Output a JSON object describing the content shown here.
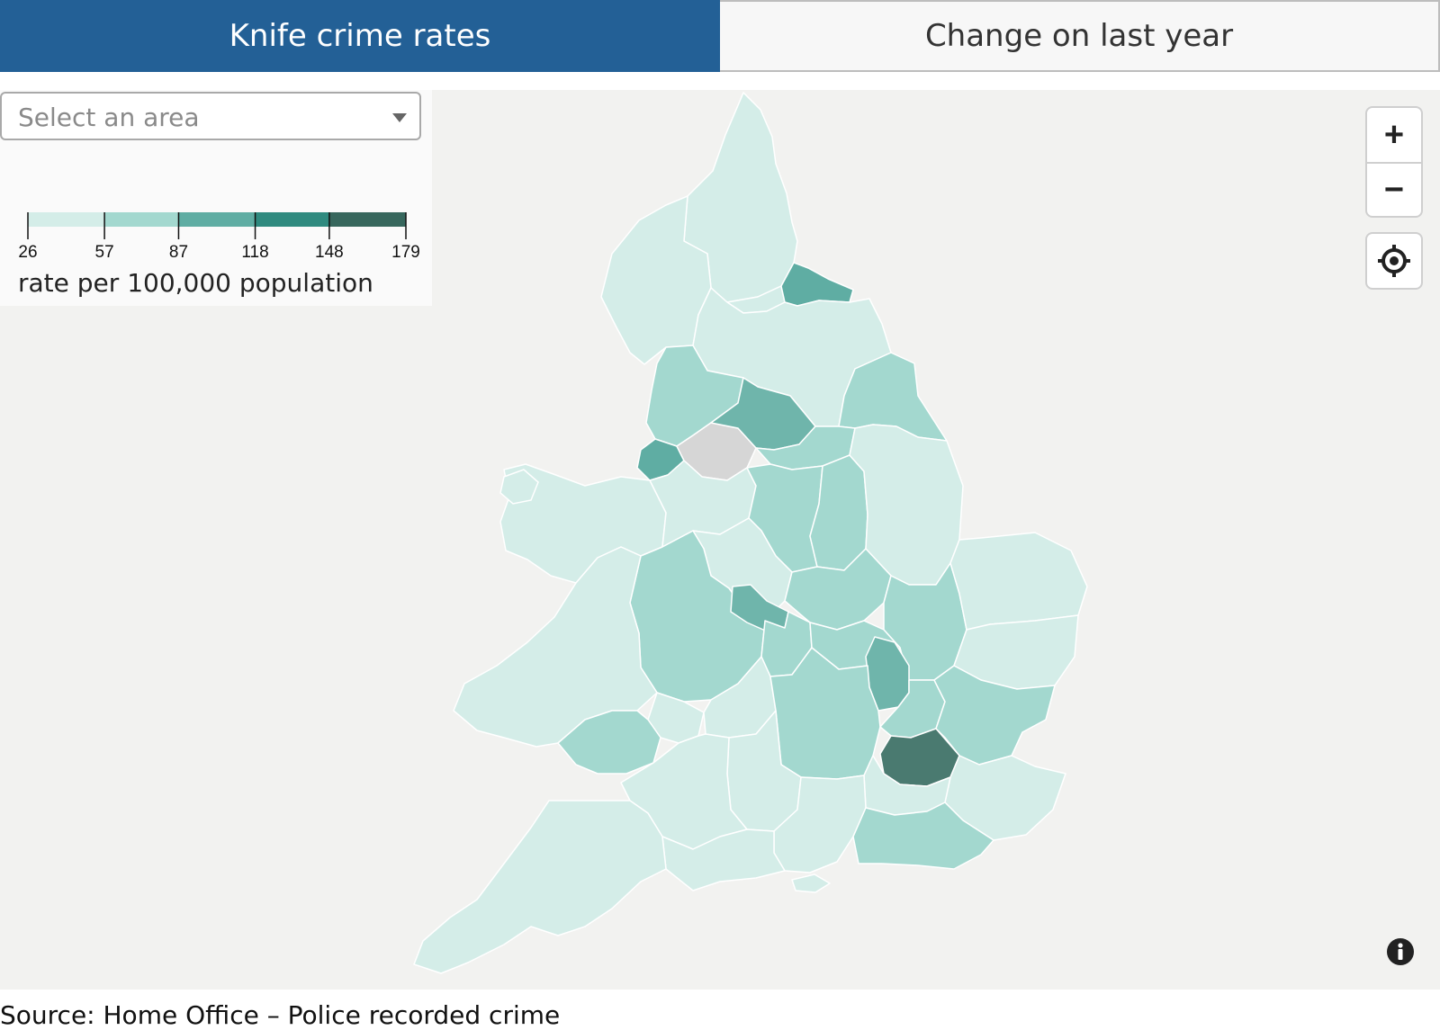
{
  "tabs": [
    {
      "label": "Knife crime rates",
      "active": true
    },
    {
      "label": "Change on last year",
      "active": false
    }
  ],
  "select": {
    "placeholder": "Select an area"
  },
  "legend": {
    "ticks": [
      "26",
      "57",
      "87",
      "118",
      "148",
      "179"
    ],
    "colors": [
      "#d4ede8",
      "#a3d8cf",
      "#5fada3",
      "#2f8a7f",
      "#37675d"
    ],
    "caption": "rate per 100,000 population"
  },
  "colors": {
    "background": "#f2f2f0",
    "no_data": "#d6d6d6",
    "tab_active": "#236096"
  },
  "controls": {
    "zoom_in": "+",
    "zoom_out": "−",
    "locate_icon": "crosshair-icon",
    "info_icon": "info-icon"
  },
  "source": "Source: Home Office – Police recorded crime"
}
